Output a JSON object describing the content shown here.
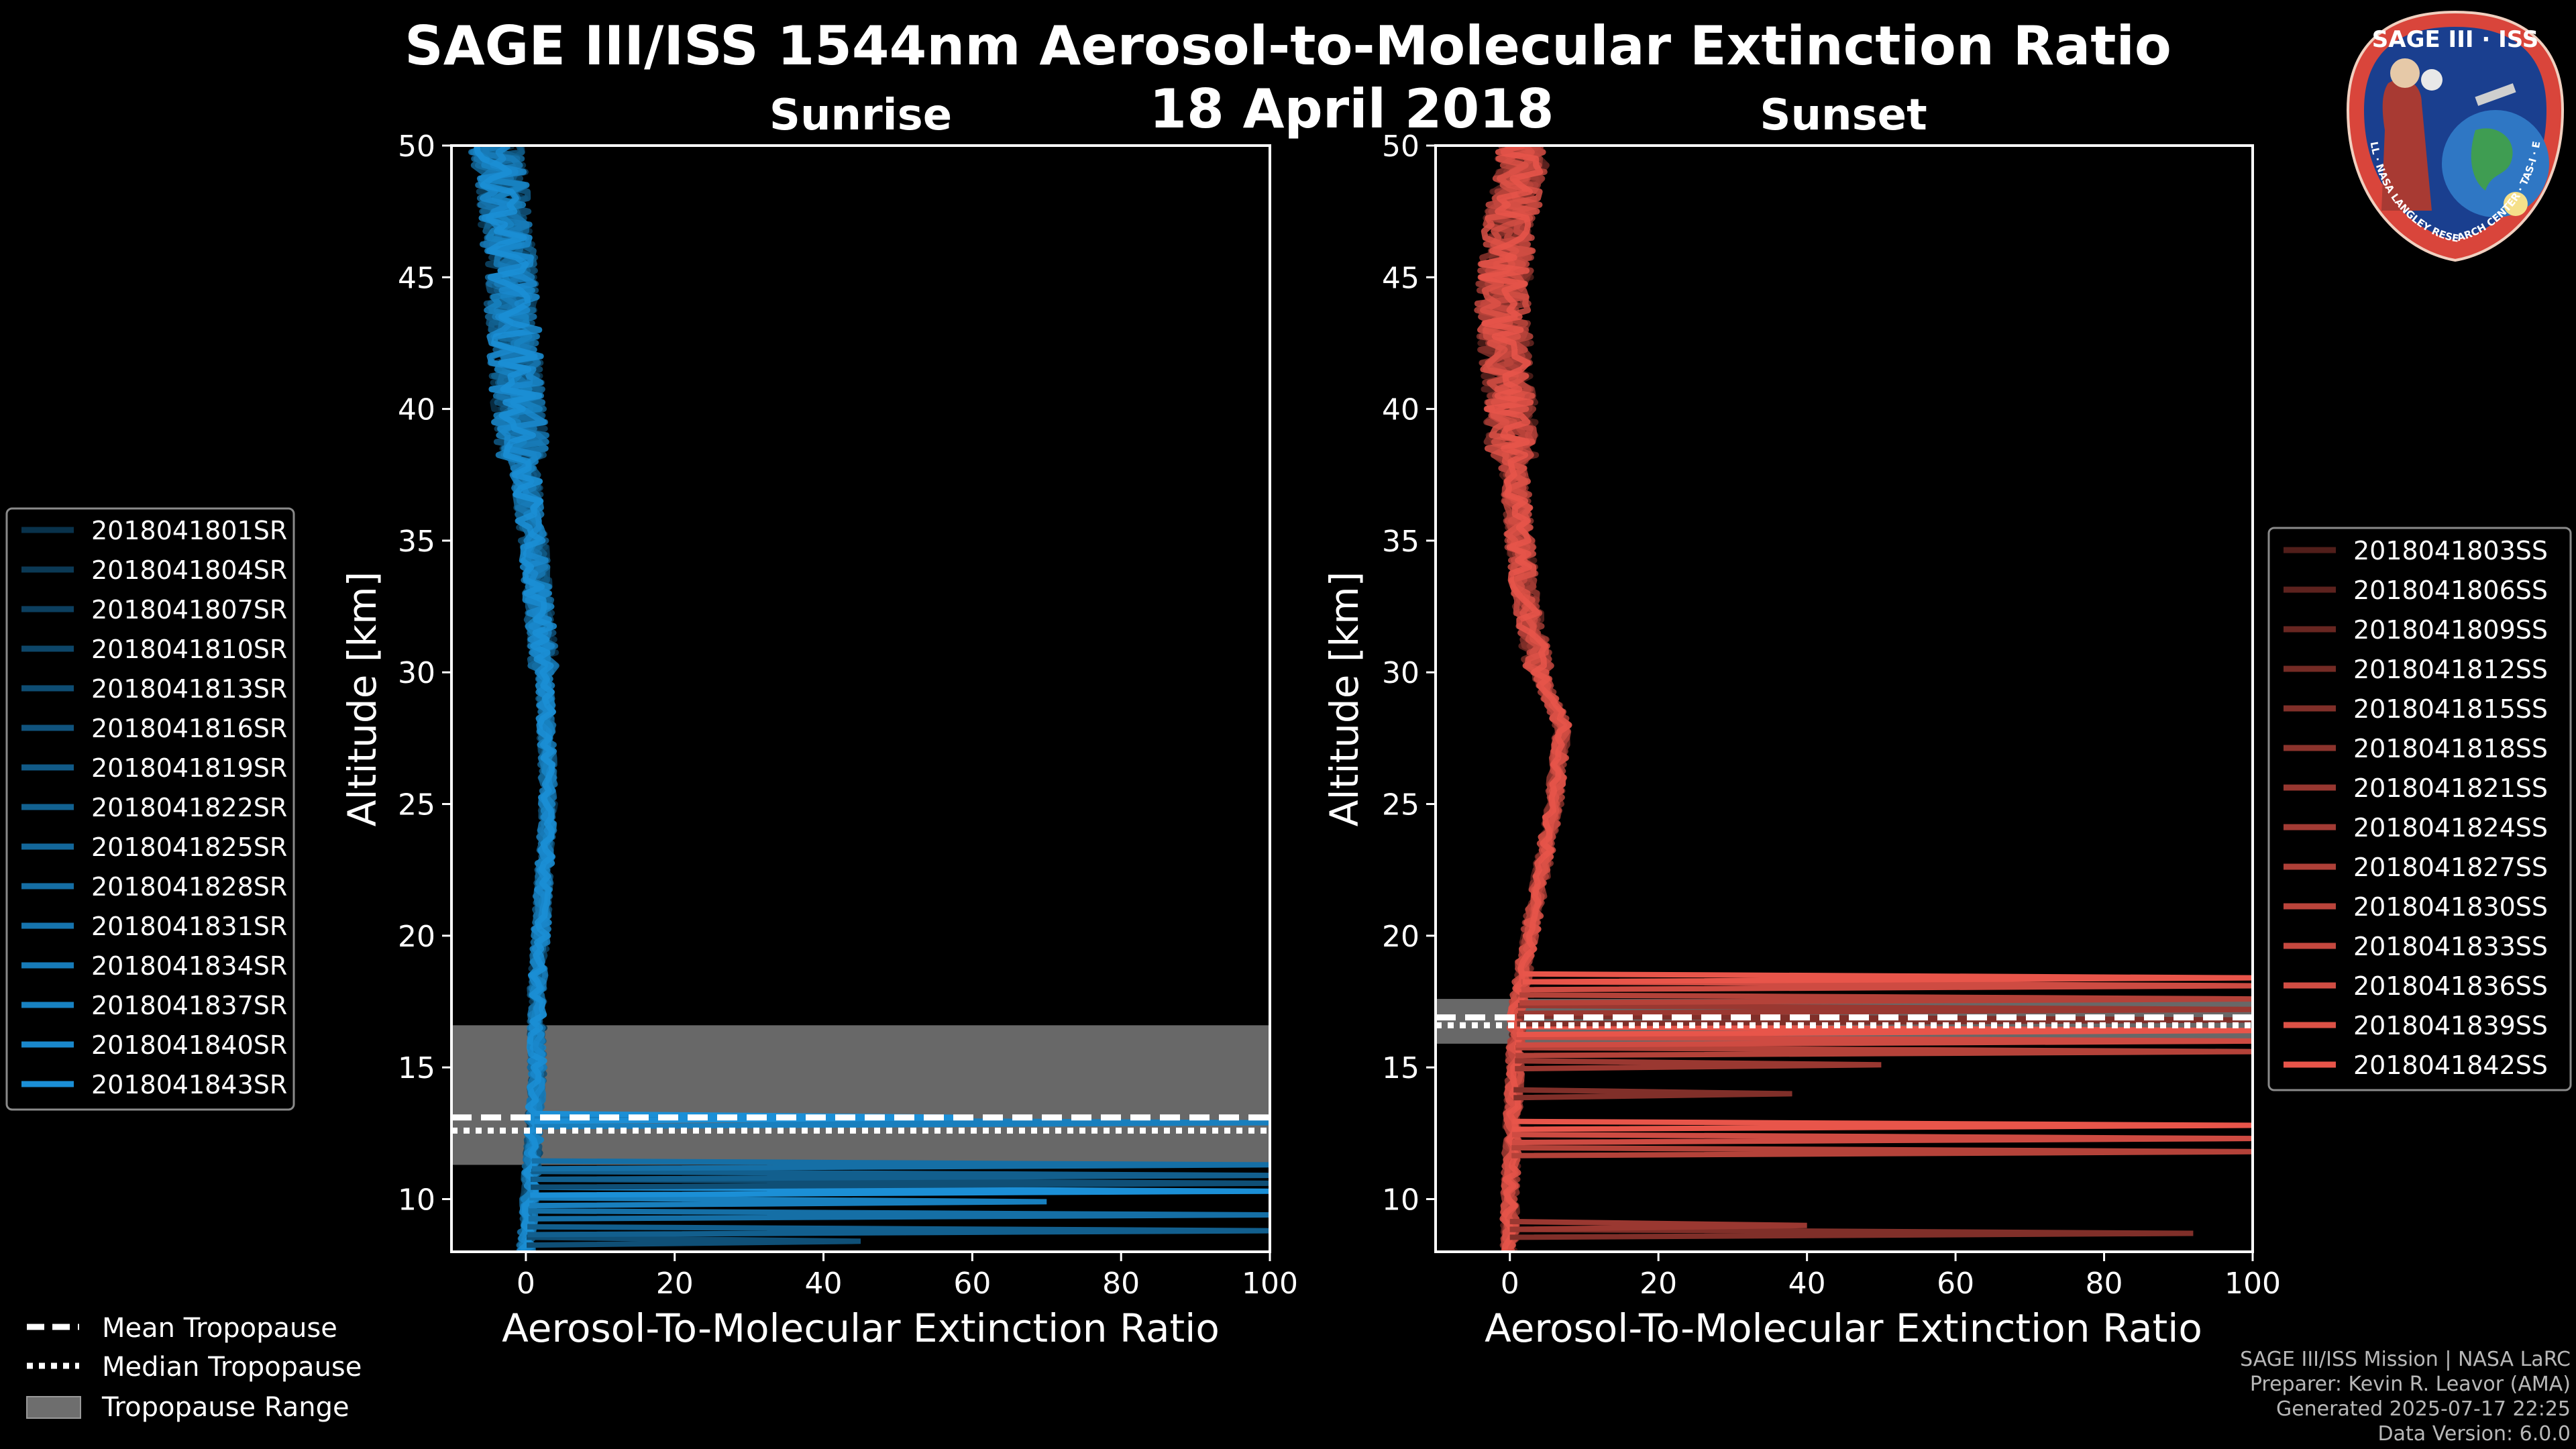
{
  "title": "SAGE III/ISS 1544nm Aerosol-to-Molecular Extinction Ratio",
  "date": "18 April 2018",
  "chart_data": [
    {
      "type": "line",
      "panel": "sunrise",
      "title": "Sunrise",
      "xlabel": "Aerosol-To-Molecular Extinction Ratio",
      "ylabel": "Altitude [km]",
      "xlim": [
        -10,
        100
      ],
      "ylim": [
        8,
        50
      ],
      "xticks": [
        0,
        20,
        40,
        60,
        80,
        100
      ],
      "yticks": [
        10,
        15,
        20,
        25,
        30,
        35,
        40,
        45,
        50
      ],
      "series_color": "#1b8fd6",
      "series": [
        "2018041801SR",
        "2018041804SR",
        "2018041807SR",
        "2018041810SR",
        "2018041813SR",
        "2018041816SR",
        "2018041819SR",
        "2018041822SR",
        "2018041825SR",
        "2018041828SR",
        "2018041831SR",
        "2018041834SR",
        "2018041837SR",
        "2018041840SR",
        "2018041843SR"
      ],
      "tropopause": {
        "mean_km": 13.1,
        "median_km": 12.6,
        "range_km": [
          11.3,
          16.6
        ]
      },
      "profile": [
        [
          0,
          8
        ],
        [
          0.5,
          10
        ],
        [
          1,
          12
        ],
        [
          1.5,
          15
        ],
        [
          1.5,
          18
        ],
        [
          2,
          20
        ],
        [
          3,
          25
        ],
        [
          2.5,
          30
        ],
        [
          1,
          35
        ],
        [
          -1,
          40
        ],
        [
          -2,
          45
        ],
        [
          -3,
          48
        ],
        [
          -4,
          50
        ]
      ],
      "spikes": [
        [
          8.4,
          45
        ],
        [
          8.8,
          100
        ],
        [
          9.4,
          100
        ],
        [
          9.9,
          70
        ],
        [
          10.3,
          100
        ],
        [
          10.6,
          100
        ],
        [
          10.9,
          100
        ],
        [
          11.3,
          100
        ],
        [
          12.9,
          100
        ],
        [
          13.1,
          60
        ]
      ]
    },
    {
      "type": "line",
      "panel": "sunset",
      "title": "Sunset",
      "xlabel": "Aerosol-To-Molecular Extinction Ratio",
      "ylabel": "Altitude [km]",
      "xlim": [
        -10,
        100
      ],
      "ylim": [
        8,
        50
      ],
      "xticks": [
        0,
        20,
        40,
        60,
        80,
        100
      ],
      "yticks": [
        10,
        15,
        20,
        25,
        30,
        35,
        40,
        45,
        50
      ],
      "series_color": "#e8554a",
      "series": [
        "2018041803SS",
        "2018041806SS",
        "2018041809SS",
        "2018041812SS",
        "2018041815SS",
        "2018041818SS",
        "2018041821SS",
        "2018041824SS",
        "2018041827SS",
        "2018041830SS",
        "2018041833SS",
        "2018041836SS",
        "2018041839SS",
        "2018041842SS"
      ],
      "tropopause": {
        "mean_km": 16.9,
        "median_km": 16.6,
        "range_km": [
          15.9,
          17.6
        ]
      },
      "profile": [
        [
          0,
          8
        ],
        [
          0,
          10
        ],
        [
          0.5,
          14
        ],
        [
          1,
          17
        ],
        [
          2,
          19
        ],
        [
          4,
          22
        ],
        [
          6,
          25
        ],
        [
          7,
          28
        ],
        [
          4,
          30
        ],
        [
          2,
          33
        ],
        [
          1,
          36
        ],
        [
          0,
          40
        ],
        [
          -1,
          44
        ],
        [
          0,
          47
        ],
        [
          2,
          50
        ]
      ],
      "spikes": [
        [
          8.7,
          92
        ],
        [
          9.0,
          40
        ],
        [
          11.8,
          100
        ],
        [
          12.3,
          100
        ],
        [
          12.8,
          100
        ],
        [
          14.0,
          38
        ],
        [
          15.1,
          50
        ],
        [
          15.6,
          100
        ],
        [
          16.0,
          100
        ],
        [
          16.4,
          100
        ],
        [
          16.8,
          100
        ],
        [
          17.2,
          100
        ],
        [
          17.6,
          100
        ],
        [
          18.1,
          100
        ],
        [
          18.4,
          100
        ]
      ]
    }
  ],
  "legend_common": {
    "mean": "Mean Tropopause",
    "median": "Median Tropopause",
    "range": "Tropopause Range"
  },
  "footer": {
    "line1": "SAGE III/ISS Mission | NASA LaRC",
    "line2": "Preparer: Kevin R. Leavor (AMA)",
    "line3": "Generated 2025-07-17 22:25",
    "line4": "Data Version: 6.0.0"
  },
  "logo": {
    "top_text": "SAGE III · ISS",
    "ring_text": "BALL · NASA LANGLEY RESEARCH CENTER · TAS-I · ESA",
    "colors": {
      "ring": "#d9453b",
      "inner": "#1a3f8f",
      "text": "#ffffff"
    }
  }
}
